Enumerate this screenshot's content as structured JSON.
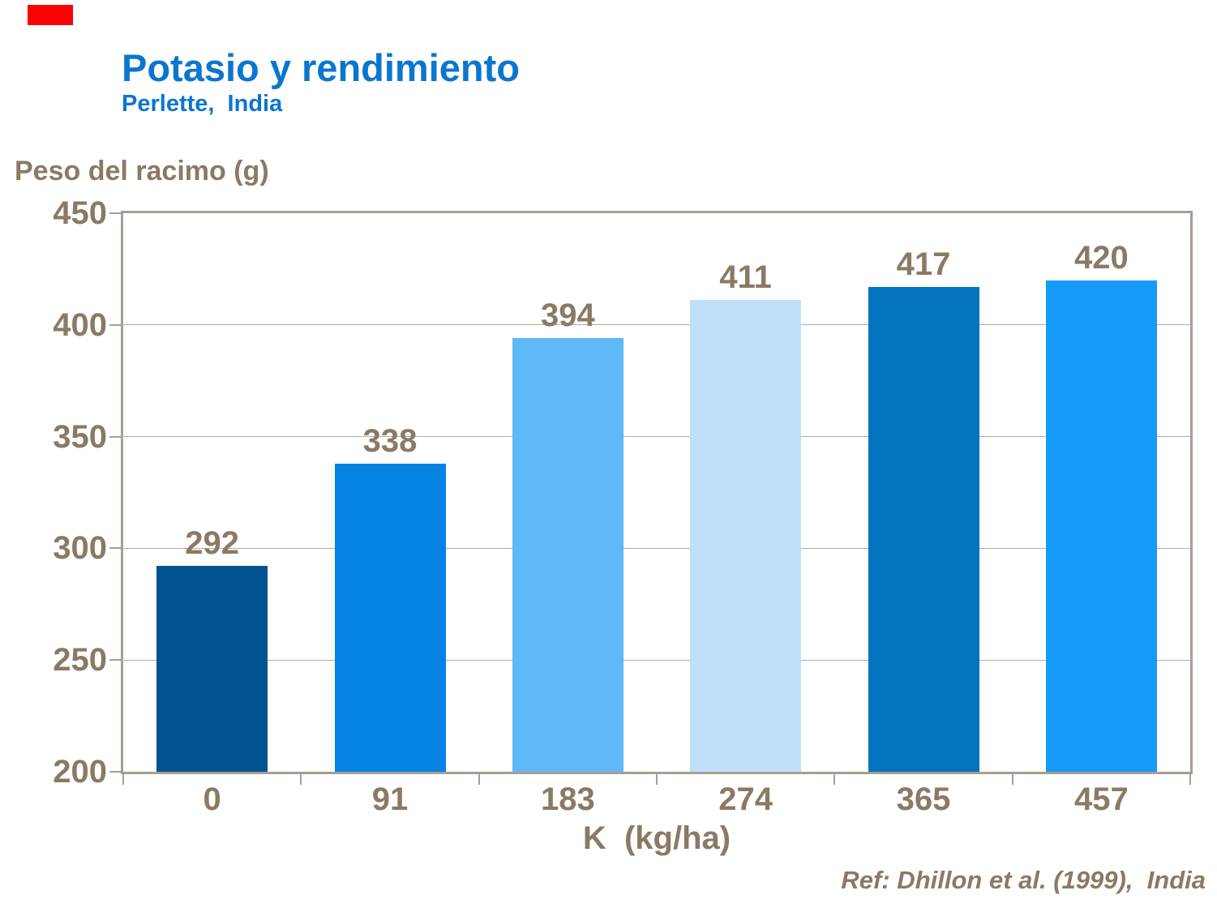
{
  "slide": {
    "title": "Potasio y rendimiento",
    "subtitle": "Perlette,  India",
    "reference": "Ref: Dhillon et al. (1999),  India",
    "title_color": "#0C76CE",
    "text_color": "#8A7A64",
    "accent_color": "#FE0000",
    "axis_color": "#A89E90",
    "gridline_color": "#B6AC9E"
  },
  "chart_data": {
    "type": "bar",
    "title": "Potasio y rendimiento",
    "subtitle": "Perlette, India",
    "ylabel": "Peso del racimo (g)",
    "xlabel": "K  (kg/ha)",
    "categories": [
      "0",
      "91",
      "183",
      "274",
      "365",
      "457"
    ],
    "values": [
      292,
      338,
      394,
      411,
      417,
      420
    ],
    "bar_colors": [
      "#01538F",
      "#0483E3",
      "#5FB8F8",
      "#BFDFFB",
      "#0473BE",
      "#169AF8"
    ],
    "ylim": [
      200,
      450
    ],
    "yticks": [
      200,
      250,
      300,
      350,
      400,
      450
    ],
    "grid": true,
    "legend_position": "none"
  }
}
